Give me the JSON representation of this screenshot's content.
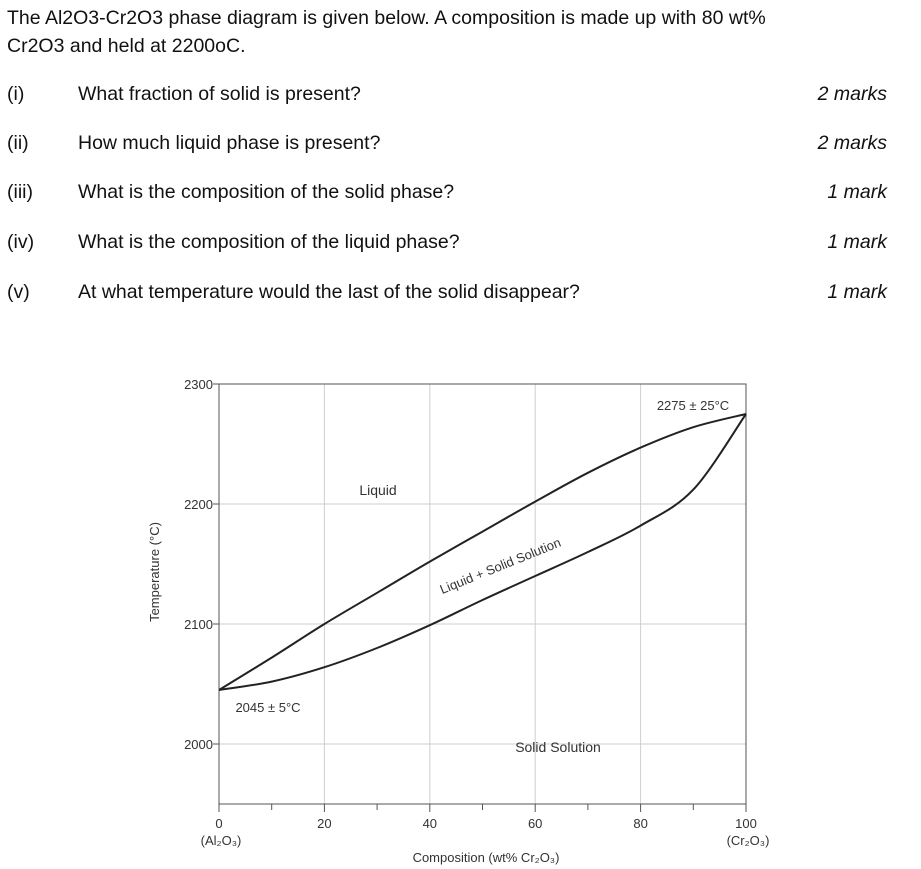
{
  "question": {
    "line1": "The Al2O3-Cr2O3 phase diagram is given below. A composition is made up with 80 wt%",
    "line2": "Cr2O3 and held at 2200oC."
  },
  "parts": [
    {
      "num": "(i)",
      "text": "What fraction of solid is present?",
      "marks": "2 marks"
    },
    {
      "num": "(ii)",
      "text": "How much liquid phase is present?",
      "marks": "2 marks"
    },
    {
      "num": "(iii)",
      "text": "What is the composition of the solid phase?",
      "marks": "1 mark"
    },
    {
      "num": "(iv)",
      "text": "What is the composition of the liquid phase?",
      "marks": "1 mark"
    },
    {
      "num": "(v)",
      "text": "At what temperature would the last of the solid disappear?",
      "marks": "1 mark"
    }
  ],
  "diagram": {
    "ylabel": "Temperature (°C)",
    "xlabel": "Composition (wt% Cr₂O₃)",
    "x_ticks": [
      "0",
      "20",
      "40",
      "60",
      "80",
      "100"
    ],
    "x_tick_values": [
      0,
      20,
      40,
      60,
      80,
      100
    ],
    "y_ticks": [
      "2000",
      "2100",
      "2200",
      "2300"
    ],
    "y_tick_values": [
      2000,
      2100,
      2200,
      2300
    ],
    "xlim": [
      0,
      100
    ],
    "ylim": [
      1950,
      2300
    ],
    "x_end_left": "(Al₂O₃)",
    "x_end_right": "(Cr₂O₃)",
    "regions": {
      "liquid": "Liquid",
      "two_phase": "Liquid + Solid Solution",
      "solid": "Solid Solution"
    },
    "annotations": {
      "melt_cr2o3": "2275 ± 25°C",
      "melt_al2o3": "2045 ± 5°C"
    },
    "liquidus": [
      [
        0,
        2045
      ],
      [
        10,
        2072
      ],
      [
        20,
        2100
      ],
      [
        30,
        2126
      ],
      [
        40,
        2152
      ],
      [
        50,
        2177
      ],
      [
        60,
        2202
      ],
      [
        70,
        2226
      ],
      [
        80,
        2247
      ],
      [
        90,
        2264
      ],
      [
        100,
        2275
      ]
    ],
    "solidus": [
      [
        0,
        2045
      ],
      [
        10,
        2052
      ],
      [
        20,
        2064
      ],
      [
        30,
        2080
      ],
      [
        40,
        2099
      ],
      [
        50,
        2120
      ],
      [
        60,
        2140
      ],
      [
        70,
        2160
      ],
      [
        80,
        2182
      ],
      [
        90,
        2212
      ],
      [
        100,
        2275
      ]
    ],
    "grid": true
  }
}
